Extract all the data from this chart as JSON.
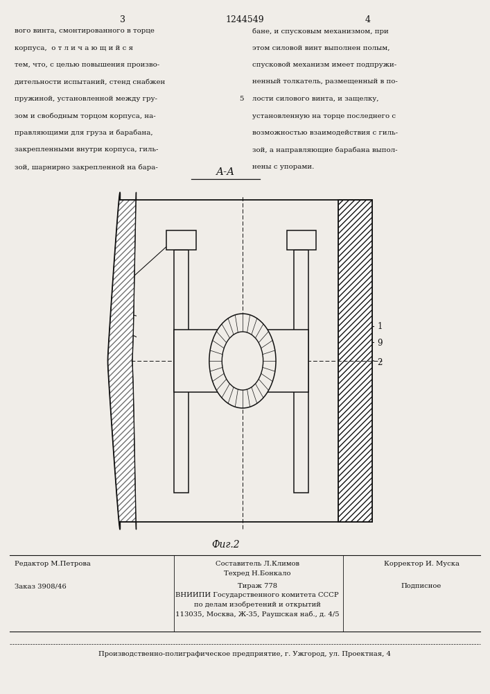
{
  "page_width": 7.07,
  "page_height": 10.0,
  "bg_color": "#f0ede8",
  "text_color": "#111111",
  "line_color": "#111111",
  "col3_header": "3",
  "patent_number": "1244549",
  "col4_header": "4",
  "text_left_col": [
    "вого винта, смонтированного в торце",
    "корпуса,  о т л и ч а ю щ и й с я",
    "тем, что, с целью повышения произво-",
    "дительности испытаний, стенд снабжен",
    "пружиной, установленной между гру-",
    "зом и свободным торцом корпуса, на-",
    "правляющими для груза и барабана,",
    "закрепленными внутри корпуса, гиль-",
    "зой, шарнирно закрепленной на бара-"
  ],
  "line_number_5": "5",
  "text_right_col": [
    "бане, и спусковым механизмом, при",
    "этом силовой винт выполнен полым,",
    "спусковой механизм имеет подпружи-",
    "ненный толкатель, размещенный в по-",
    "лости силового винта, и защелку,",
    "установленную на торце последнего с",
    "возможностью взаимодействия с гиль-",
    "зой, а направляющие барабана выпол-",
    "нены с упорами."
  ],
  "section_label": "А-А",
  "fig_label": "Фиг.2",
  "bottom_line": "Производственно-полиграфическое предприятие, г. Ужгород, ул. Проектная, 4"
}
